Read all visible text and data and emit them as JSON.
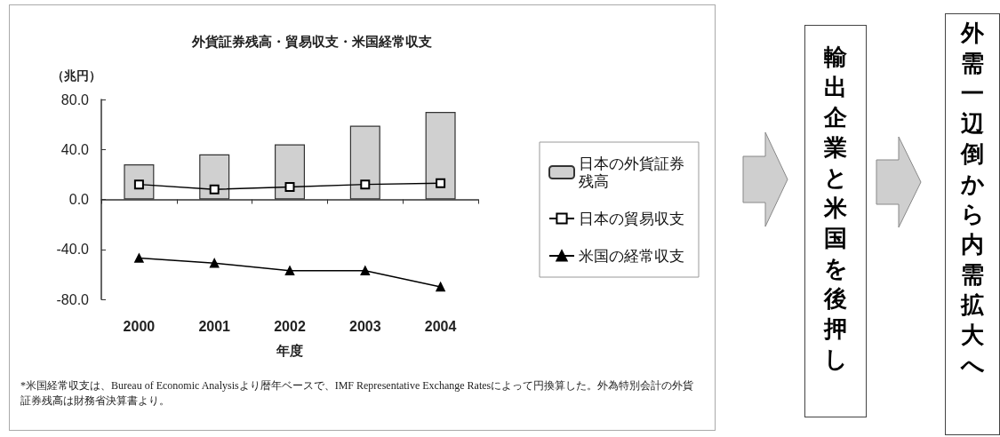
{
  "chart_data": {
    "type": "bar",
    "title": "外貨証券残高・貿易収支・米国経常収支",
    "xlabel": "年度",
    "ylabel": "（兆円）",
    "categories": [
      "2000",
      "2001",
      "2002",
      "2003",
      "2004"
    ],
    "series": [
      {
        "name": "日本の外貨証券残高",
        "color": "#d0d0d0",
        "values": [
          28,
          36,
          44,
          59,
          70
        ]
      },
      {
        "name": "日本の貿易収支",
        "type": "line",
        "color": "#000000",
        "marker": "square",
        "values": [
          12,
          8,
          10,
          12,
          13
        ]
      },
      {
        "name": "米国の経常収支",
        "type": "line",
        "color": "#000000",
        "marker": "triangle",
        "values": [
          -47,
          -51,
          -57,
          -57,
          -70
        ]
      }
    ],
    "ylim": [
      -80,
      80
    ],
    "yticks": [
      {
        "value": -80,
        "label": "-80.0"
      },
      {
        "value": -40,
        "label": "-40.0"
      },
      {
        "value": 0,
        "label": "0.0"
      },
      {
        "value": 40,
        "label": "40.0"
      },
      {
        "value": 80,
        "label": "80.0"
      }
    ],
    "legend": "right",
    "annotations": [
      "*米国経常収支は、Bureau of Economic Analysisより暦年ベースで、IMF Representative Exchange Ratesによって円換算した。外為特別会計の外貨証券残高は財務省決算書より。",
      "輸出企業と米国を後押し",
      "外需一辺倒から内需拡大へ"
    ]
  }
}
